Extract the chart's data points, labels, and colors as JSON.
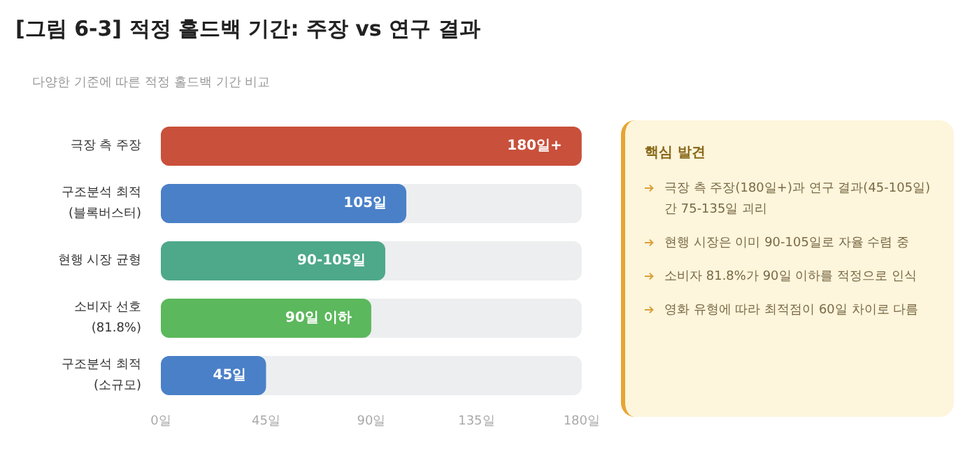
{
  "chart_data": [
    {
      "type": "bar",
      "title": "[그림 6-3] 적정 홀드백 기간: 주장 vs 연구 결과",
      "subtitle": "다양한 기준에 따른 적정 홀드백 기간 비교",
      "orientation": "horizontal",
      "categories": [
        "극장 측 주장",
        "구조분석 최적\n(블록버스터)",
        "현행 시장 균형",
        "소비자 선호\n(81.8%)",
        "구조분석 최적\n(소규모)"
      ],
      "values": [
        180,
        105,
        96,
        90,
        45
      ],
      "colors": [
        "#c9503b",
        "#4a80c8",
        "#4ea88a",
        "#5cb85c",
        "#4a80c8"
      ],
      "value_labels": [
        "180일+",
        "105일",
        "90-105일",
        "90일 이하",
        "45일"
      ],
      "xlim": [
        0,
        180
      ],
      "xticks": [
        {
          "value": 0,
          "label": "0일"
        },
        {
          "value": 45,
          "label": "45일"
        },
        {
          "value": 90,
          "label": "90일"
        },
        {
          "value": 135,
          "label": "135일"
        },
        {
          "value": 180,
          "label": "180일"
        }
      ]
    },
    {
      "type": "other",
      "title": "핵심 발견",
      "annotations": [
        "극장 측 주장(180일+)과 연구 결과(45-105일) 간 75-135일 괴리",
        "현행 시장은 이미 90-105일로 자율 수렴 중",
        "소비자 81.8%가 90일 이하를 적정으로 인식",
        "영화 유형에 따라 최적점이 60일 차이로 다름"
      ]
    }
  ]
}
